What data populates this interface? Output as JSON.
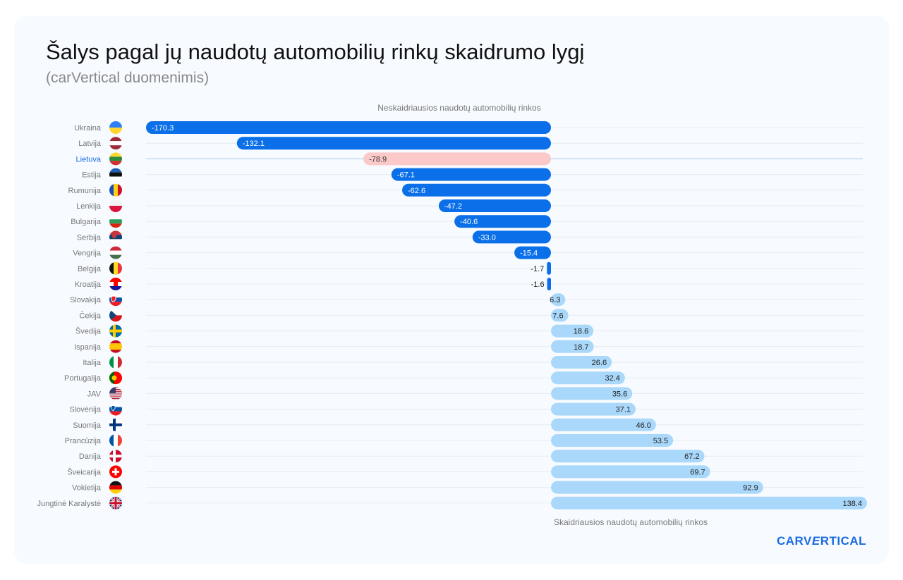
{
  "title": "Šalys pagal jų naudotų automobilių rinkų skaidrumo lygį",
  "subtitle": "(carVertical duomenimis)",
  "logo": "CARVERTICAL",
  "chart_data": {
    "type": "bar",
    "orientation": "horizontal",
    "top_annotation": "Neskaidriausios naudotų automobilių rinkos",
    "bottom_annotation": "Skaidriausios naudotų automobilių rinkos",
    "categories": [
      "Ukraina",
      "Latvija",
      "Lietuva",
      "Estija",
      "Rumunija",
      "Lenkija",
      "Bulgarija",
      "Serbija",
      "Vengrija",
      "Belgija",
      "Kroatija",
      "Slovakija",
      "Čekija",
      "Švedija",
      "Ispanija",
      "Italija",
      "Portugalija",
      "JAV",
      "Slovėnija",
      "Suomija",
      "Prancūzija",
      "Danija",
      "Šveicarija",
      "Vokietija",
      "Jungtinė Karalystė"
    ],
    "values": [
      -170.3,
      -132.1,
      -78.9,
      -67.1,
      -62.6,
      -47.2,
      -40.6,
      -33.0,
      -15.4,
      -1.7,
      -1.6,
      6.3,
      7.6,
      18.6,
      18.7,
      26.6,
      32.4,
      35.6,
      37.1,
      46.0,
      53.5,
      67.2,
      69.7,
      92.9,
      138.4
    ],
    "highlight": "Lietuva",
    "colors": {
      "negative": "#0a6fe8",
      "positive": "#a9d8fb",
      "highlight": "#fcc9c9",
      "highlight_label": "#1a6be0"
    },
    "flags": [
      "ua",
      "lv",
      "lt",
      "ee",
      "ro",
      "pl",
      "bg",
      "rs",
      "hu",
      "be",
      "hr",
      "sk",
      "cz",
      "se",
      "es",
      "it",
      "pt",
      "us",
      "si",
      "fi",
      "fr",
      "dk",
      "ch",
      "de",
      "gb"
    ],
    "grid": true
  }
}
